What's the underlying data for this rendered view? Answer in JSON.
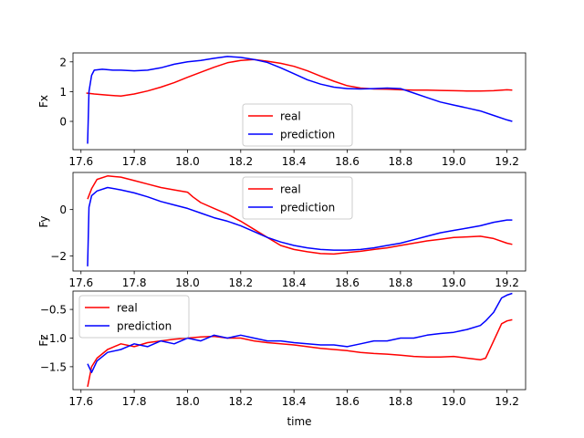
{
  "chart_data": [
    {
      "type": "line",
      "ylabel": "Fx",
      "xlim": [
        17.57,
        19.27
      ],
      "ylim": [
        -0.95,
        2.3
      ],
      "xticks": [
        "17.6",
        "17.8",
        "18.0",
        "18.2",
        "18.4",
        "18.6",
        "18.8",
        "19.0",
        "19.2"
      ],
      "yticks": [
        "0",
        "1",
        "2"
      ],
      "ytick_values": [
        0,
        1,
        2
      ],
      "legend": "lower-center",
      "series": [
        {
          "name": "real",
          "color": "#ff0000",
          "x": [
            17.62,
            17.65,
            17.7,
            17.75,
            17.8,
            17.85,
            17.9,
            17.95,
            18.0,
            18.05,
            18.1,
            18.15,
            18.2,
            18.25,
            18.3,
            18.35,
            18.4,
            18.45,
            18.5,
            18.55,
            18.6,
            18.65,
            18.7,
            18.75,
            18.8,
            18.85,
            18.9,
            18.95,
            19.0,
            19.05,
            19.1,
            19.15,
            19.2,
            19.22
          ],
          "y": [
            0.95,
            0.92,
            0.88,
            0.85,
            0.92,
            1.02,
            1.15,
            1.3,
            1.48,
            1.65,
            1.82,
            1.97,
            2.05,
            2.08,
            2.02,
            1.95,
            1.85,
            1.7,
            1.52,
            1.35,
            1.2,
            1.12,
            1.09,
            1.08,
            1.06,
            1.05,
            1.05,
            1.04,
            1.03,
            1.02,
            1.02,
            1.03,
            1.06,
            1.05
          ]
        },
        {
          "name": "prediction",
          "color": "#0000ff",
          "x": [
            17.625,
            17.63,
            17.64,
            17.65,
            17.68,
            17.72,
            17.75,
            17.8,
            17.85,
            17.9,
            17.95,
            18.0,
            18.05,
            18.1,
            18.15,
            18.2,
            18.25,
            18.3,
            18.35,
            18.4,
            18.45,
            18.5,
            18.55,
            18.6,
            18.65,
            18.7,
            18.75,
            18.8,
            18.85,
            18.9,
            18.95,
            19.0,
            19.05,
            19.1,
            19.15,
            19.2,
            19.22
          ],
          "y": [
            -0.75,
            1.0,
            1.55,
            1.72,
            1.75,
            1.72,
            1.72,
            1.7,
            1.72,
            1.8,
            1.92,
            2.0,
            2.05,
            2.12,
            2.18,
            2.15,
            2.08,
            1.98,
            1.8,
            1.6,
            1.4,
            1.25,
            1.15,
            1.1,
            1.09,
            1.1,
            1.12,
            1.1,
            0.95,
            0.8,
            0.65,
            0.55,
            0.45,
            0.35,
            0.2,
            0.05,
            0.0
          ]
        }
      ]
    },
    {
      "type": "line",
      "ylabel": "Fy",
      "xlim": [
        17.57,
        19.27
      ],
      "ylim": [
        -2.65,
        1.6
      ],
      "xticks": [
        "17.6",
        "17.8",
        "18.0",
        "18.2",
        "18.4",
        "18.6",
        "18.8",
        "19.0",
        "19.2"
      ],
      "yticks": [
        "−2",
        "0"
      ],
      "ytick_values": [
        -2,
        0
      ],
      "legend": "top-center",
      "series": [
        {
          "name": "real",
          "color": "#ff0000",
          "x": [
            17.625,
            17.64,
            17.66,
            17.7,
            17.75,
            17.8,
            17.85,
            17.9,
            17.95,
            18.0,
            18.02,
            18.05,
            18.1,
            18.15,
            18.2,
            18.25,
            18.3,
            18.35,
            18.4,
            18.45,
            18.5,
            18.55,
            18.6,
            18.65,
            18.7,
            18.75,
            18.8,
            18.85,
            18.9,
            18.95,
            19.0,
            19.05,
            19.1,
            19.15,
            19.2,
            19.22
          ],
          "y": [
            0.45,
            0.9,
            1.3,
            1.45,
            1.4,
            1.25,
            1.1,
            0.95,
            0.85,
            0.75,
            0.55,
            0.3,
            0.05,
            -0.2,
            -0.5,
            -0.85,
            -1.2,
            -1.55,
            -1.72,
            -1.82,
            -1.9,
            -1.92,
            -1.85,
            -1.8,
            -1.72,
            -1.65,
            -1.55,
            -1.45,
            -1.35,
            -1.28,
            -1.2,
            -1.18,
            -1.15,
            -1.25,
            -1.45,
            -1.5
          ]
        },
        {
          "name": "prediction",
          "color": "#0000ff",
          "x": [
            17.625,
            17.63,
            17.64,
            17.66,
            17.7,
            17.75,
            17.8,
            17.85,
            17.9,
            17.95,
            18.0,
            18.05,
            18.1,
            18.15,
            18.2,
            18.25,
            18.3,
            18.35,
            18.4,
            18.45,
            18.5,
            18.55,
            18.6,
            18.65,
            18.7,
            18.75,
            18.8,
            18.85,
            18.9,
            18.95,
            19.0,
            19.05,
            19.1,
            19.15,
            19.2,
            19.22
          ],
          "y": [
            -2.45,
            0.1,
            0.6,
            0.8,
            0.95,
            0.85,
            0.72,
            0.55,
            0.35,
            0.2,
            0.05,
            -0.15,
            -0.35,
            -0.5,
            -0.7,
            -0.95,
            -1.2,
            -1.4,
            -1.55,
            -1.65,
            -1.72,
            -1.75,
            -1.75,
            -1.72,
            -1.65,
            -1.55,
            -1.45,
            -1.3,
            -1.15,
            -1.0,
            -0.9,
            -0.8,
            -0.7,
            -0.55,
            -0.45,
            -0.45
          ]
        }
      ]
    },
    {
      "type": "line",
      "ylabel": "Fz",
      "xlabel": "time",
      "xlim": [
        17.57,
        19.27
      ],
      "ylim": [
        -1.9,
        -0.18
      ],
      "xticks": [
        "17.6",
        "17.8",
        "18.0",
        "18.2",
        "18.4",
        "18.6",
        "18.8",
        "19.0",
        "19.2"
      ],
      "yticks": [
        "−1.5",
        "−1.0",
        "−0.5"
      ],
      "ytick_values": [
        -1.5,
        -1.0,
        -0.5
      ],
      "legend": "top-left",
      "series": [
        {
          "name": "real",
          "color": "#ff0000",
          "x": [
            17.625,
            17.64,
            17.66,
            17.7,
            17.75,
            17.8,
            17.85,
            17.9,
            17.95,
            18.0,
            18.05,
            18.1,
            18.15,
            18.2,
            18.25,
            18.3,
            18.35,
            18.4,
            18.45,
            18.5,
            18.55,
            18.6,
            18.65,
            18.7,
            18.75,
            18.8,
            18.85,
            18.9,
            18.95,
            19.0,
            19.05,
            19.1,
            19.12,
            19.15,
            19.18,
            19.2,
            19.22
          ],
          "y": [
            -1.85,
            -1.5,
            -1.35,
            -1.2,
            -1.1,
            -1.15,
            -1.08,
            -1.05,
            -1.02,
            -1.0,
            -0.98,
            -0.97,
            -1.0,
            -1.0,
            -1.05,
            -1.08,
            -1.1,
            -1.12,
            -1.15,
            -1.18,
            -1.2,
            -1.22,
            -1.25,
            -1.27,
            -1.28,
            -1.3,
            -1.32,
            -1.33,
            -1.33,
            -1.32,
            -1.35,
            -1.38,
            -1.35,
            -1.05,
            -0.75,
            -0.7,
            -0.68
          ]
        },
        {
          "name": "prediction",
          "color": "#0000ff",
          "x": [
            17.625,
            17.64,
            17.66,
            17.7,
            17.75,
            17.8,
            17.85,
            17.9,
            17.95,
            18.0,
            18.05,
            18.1,
            18.15,
            18.2,
            18.25,
            18.3,
            18.35,
            18.4,
            18.45,
            18.5,
            18.55,
            18.6,
            18.65,
            18.7,
            18.75,
            18.8,
            18.85,
            18.9,
            18.95,
            19.0,
            19.05,
            19.1,
            19.12,
            19.15,
            19.18,
            19.2,
            19.22
          ],
          "y": [
            -1.45,
            -1.6,
            -1.4,
            -1.25,
            -1.2,
            -1.1,
            -1.15,
            -1.05,
            -1.1,
            -1.0,
            -1.05,
            -0.95,
            -1.0,
            -0.95,
            -1.0,
            -1.05,
            -1.05,
            -1.08,
            -1.1,
            -1.12,
            -1.12,
            -1.15,
            -1.1,
            -1.05,
            -1.05,
            -1.0,
            -1.0,
            -0.95,
            -0.92,
            -0.9,
            -0.85,
            -0.78,
            -0.7,
            -0.55,
            -0.3,
            -0.25,
            -0.22
          ]
        }
      ]
    }
  ]
}
